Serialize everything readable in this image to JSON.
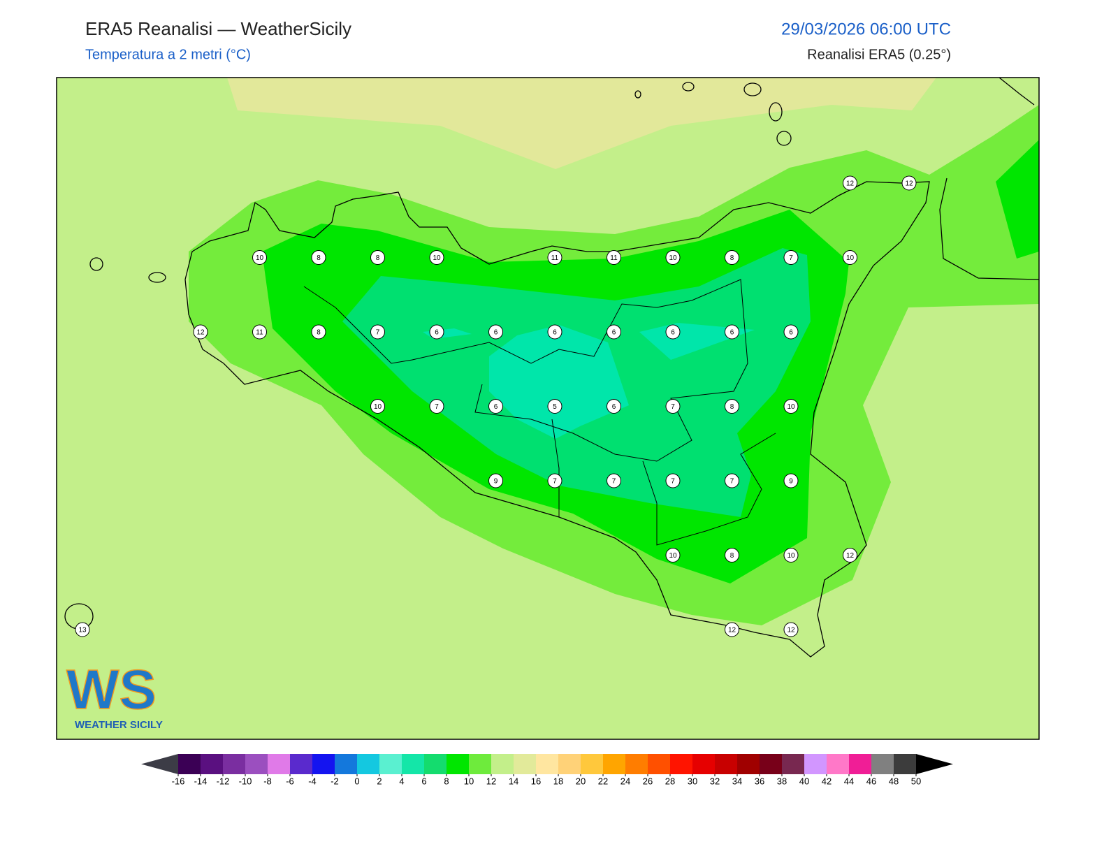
{
  "header": {
    "title": "ERA5 Reanalisi — WeatherSicily",
    "subtitle": "Temperatura a 2 metri (°C)",
    "date": "29/03/2026 06:00 UTC",
    "source": "Reanalisi ERA5 (0.25°)"
  },
  "grid": {
    "rows": [
      [
        null,
        null,
        null,
        null,
        null,
        null,
        null,
        null,
        null,
        null,
        null,
        null,
        null,
        12,
        12
      ],
      [
        null,
        null,
        null,
        10,
        8,
        8,
        10,
        null,
        11,
        11,
        10,
        8,
        7,
        10,
        null
      ],
      [
        null,
        null,
        12,
        11,
        8,
        7,
        6,
        6,
        6,
        6,
        6,
        6,
        6,
        null,
        null
      ],
      [
        null,
        null,
        null,
        null,
        null,
        10,
        7,
        6,
        5,
        6,
        7,
        8,
        10,
        null,
        null
      ],
      [
        null,
        null,
        null,
        null,
        null,
        null,
        null,
        9,
        7,
        7,
        7,
        7,
        9,
        null,
        null
      ],
      [
        null,
        null,
        null,
        null,
        null,
        null,
        null,
        null,
        null,
        null,
        10,
        8,
        10,
        12,
        null
      ],
      [
        13,
        null,
        null,
        null,
        null,
        null,
        null,
        null,
        null,
        null,
        null,
        12,
        12,
        null,
        null
      ]
    ]
  },
  "colorbar": {
    "ticks": [
      -16,
      -14,
      -12,
      -10,
      -8,
      -6,
      -4,
      -2,
      0,
      2,
      4,
      6,
      8,
      10,
      12,
      14,
      16,
      18,
      20,
      22,
      24,
      26,
      28,
      30,
      32,
      34,
      36,
      38,
      40,
      42,
      44,
      46,
      48,
      50
    ],
    "colors": [
      "#3b0055",
      "#5a1080",
      "#7a2ea0",
      "#9b4fbf",
      "#e07ae8",
      "#5a2acd",
      "#1414f0",
      "#1478dc",
      "#14c8e0",
      "#5af0d0",
      "#14e6a8",
      "#14dc6e",
      "#00e600",
      "#6eeb3c",
      "#c3ef8a",
      "#e2ea9a",
      "#ffe6a0",
      "#ffd278",
      "#ffc83c",
      "#ffa500",
      "#ff7d00",
      "#ff5000",
      "#ff1400",
      "#e60000",
      "#c80000",
      "#a00000",
      "#780019",
      "#782850",
      "#d296ff",
      "#ff78c8",
      "#f01e96",
      "#808080",
      "#3c3c3c"
    ],
    "under_color": "#3c3c46",
    "over_color": "#000000"
  },
  "logo": {
    "mark": "WS",
    "name": "WEATHER SICILY"
  }
}
